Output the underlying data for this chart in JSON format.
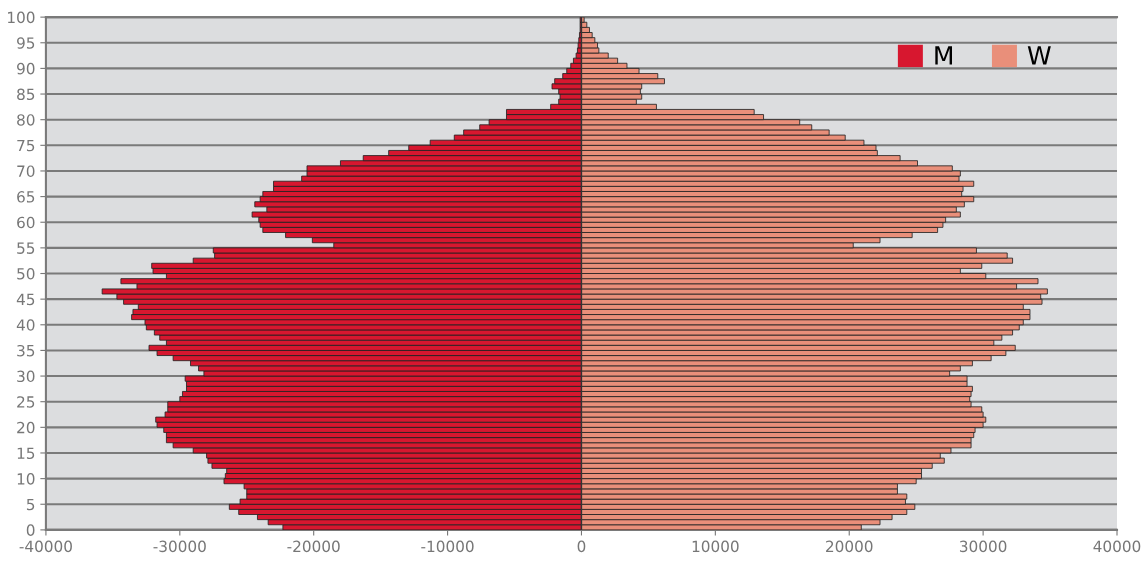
{
  "chart_data": {
    "type": "bar",
    "orientation": "horizontal",
    "x": [
      0,
      1,
      2,
      3,
      4,
      5,
      6,
      7,
      8,
      9,
      10,
      11,
      12,
      13,
      14,
      15,
      16,
      17,
      18,
      19,
      20,
      21,
      22,
      23,
      24,
      25,
      26,
      27,
      28,
      29,
      30,
      31,
      32,
      33,
      34,
      35,
      36,
      37,
      38,
      39,
      40,
      41,
      42,
      43,
      44,
      45,
      46,
      47,
      48,
      49,
      50,
      51,
      52,
      53,
      54,
      55,
      56,
      57,
      58,
      59,
      60,
      61,
      62,
      63,
      64,
      65,
      66,
      67,
      68,
      69,
      70,
      71,
      72,
      73,
      74,
      75,
      76,
      77,
      78,
      79,
      80,
      81,
      82,
      83,
      84,
      85,
      86,
      87,
      88,
      89,
      90,
      91,
      92,
      93,
      94,
      95,
      96,
      97,
      98,
      99
    ],
    "series": [
      {
        "name": "M",
        "color": "#d7172f",
        "values": [
          -22300,
          -23400,
          -24200,
          -25600,
          -26300,
          -25500,
          -25000,
          -25000,
          -25200,
          -26700,
          -26600,
          -26500,
          -27600,
          -27900,
          -28000,
          -29000,
          -30500,
          -31000,
          -31000,
          -31200,
          -31700,
          -31800,
          -31100,
          -30900,
          -30900,
          -30000,
          -29800,
          -29500,
          -29500,
          -29600,
          -28200,
          -28600,
          -29200,
          -30500,
          -31700,
          -32300,
          -31000,
          -31500,
          -31900,
          -32500,
          -32600,
          -33600,
          -33500,
          -33100,
          -34200,
          -34700,
          -35800,
          -33200,
          -34400,
          -31000,
          -32000,
          -32100,
          -29000,
          -27400,
          -27500,
          -18500,
          -20100,
          -22100,
          -23800,
          -24000,
          -24100,
          -24600,
          -23500,
          -24400,
          -24000,
          -23800,
          -23000,
          -23000,
          -20900,
          -20500,
          -20500,
          -18000,
          -16300,
          -14400,
          -12900,
          -11300,
          -9500,
          -8800,
          -7600,
          -6900,
          -5600,
          -5600,
          -2300,
          -1700,
          -1600,
          -1700,
          -2200,
          -2000,
          -1400,
          -1100,
          -800,
          -600,
          -400,
          -300,
          -250,
          -200,
          -150,
          -100,
          -100,
          -100
        ]
      },
      {
        "name": "W",
        "color": "#e98f7a",
        "values": [
          20900,
          22300,
          23200,
          24300,
          24900,
          24200,
          24300,
          23600,
          23600,
          25000,
          25400,
          25400,
          26200,
          27100,
          26800,
          27600,
          29100,
          29100,
          29300,
          29400,
          30000,
          30200,
          30000,
          29900,
          29100,
          29000,
          29100,
          29200,
          28800,
          28800,
          27500,
          28300,
          29200,
          30600,
          31700,
          32400,
          30800,
          31400,
          32200,
          32700,
          33000,
          33500,
          33500,
          33000,
          34400,
          34300,
          34800,
          32500,
          34100,
          30200,
          28300,
          29900,
          32200,
          31800,
          29500,
          20300,
          22300,
          24700,
          26600,
          27000,
          27200,
          28300,
          28000,
          28600,
          29300,
          28400,
          28500,
          29300,
          28200,
          28300,
          27700,
          25100,
          23800,
          22100,
          22000,
          21100,
          19700,
          18500,
          17200,
          16300,
          13600,
          12900,
          5600,
          4100,
          4500,
          4400,
          4500,
          6200,
          5700,
          4300,
          3400,
          2700,
          2000,
          1300,
          1200,
          1000,
          800,
          600,
          400,
          200
        ]
      }
    ],
    "xlim": [
      -40000,
      40000
    ],
    "xticks": [
      -40000,
      -30000,
      -20000,
      -10000,
      0,
      10000,
      20000,
      30000,
      40000
    ],
    "ylim": [
      0,
      100
    ],
    "yticks": [
      0,
      5,
      10,
      15,
      20,
      25,
      30,
      35,
      40,
      45,
      50,
      55,
      60,
      65,
      70,
      75,
      80,
      85,
      90,
      95,
      100
    ],
    "stacked": true,
    "grid": "y",
    "legend": "top right"
  }
}
